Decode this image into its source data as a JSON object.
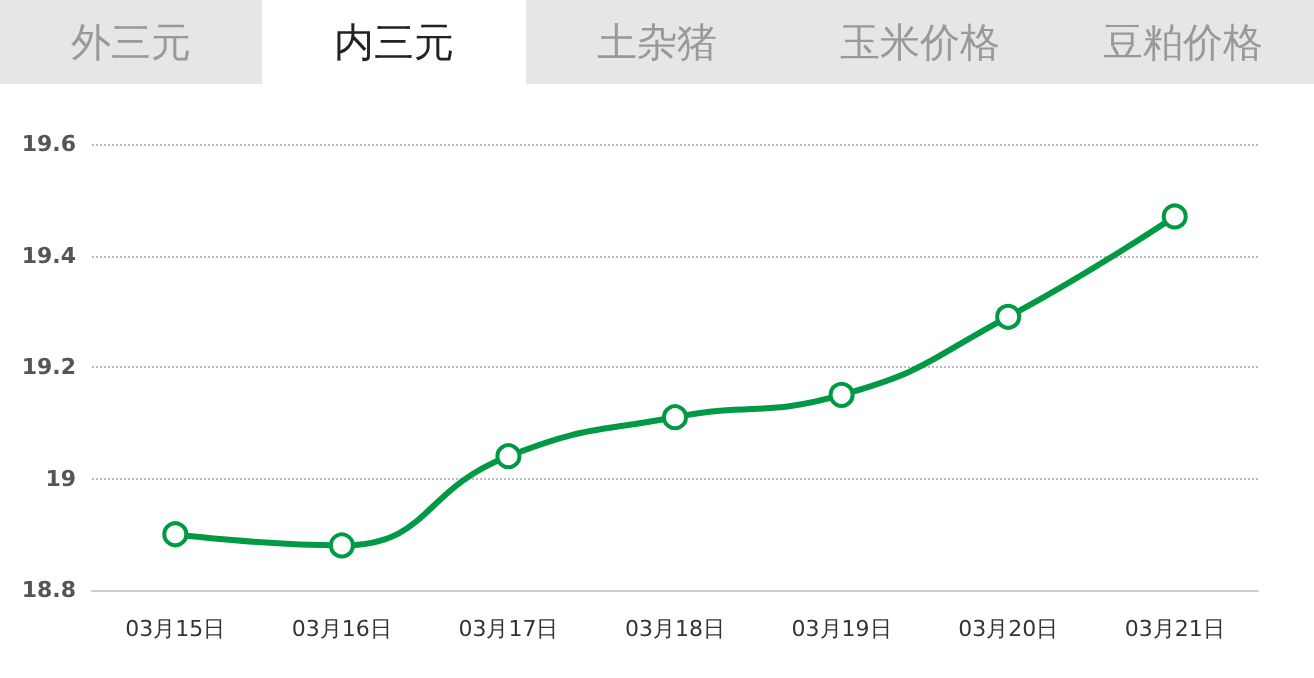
{
  "chart_data": {
    "type": "line",
    "title": "内三元",
    "annotations": [
      "外三元",
      "土杂猪",
      "玉米价格",
      "豆粕价格"
    ],
    "categories": [
      "03月15日",
      "03月16日",
      "03月17日",
      "03月18日",
      "03月19日",
      "03月20日",
      "03月21日"
    ],
    "series": [
      {
        "color": "#009944",
        "values": [
          18.9,
          18.88,
          19.04,
          19.11,
          19.15,
          19.29,
          19.47
        ]
      }
    ],
    "ylim": [
      18.8,
      19.6
    ],
    "yticks": [
      18.8,
      19,
      19.2,
      19.4,
      19.6
    ],
    "grid": "y",
    "marker": "circle",
    "line_style": "solid"
  }
}
